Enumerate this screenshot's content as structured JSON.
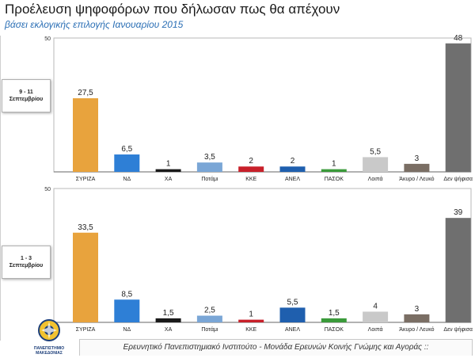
{
  "header": {
    "title": "Προέλευση ψηφοφόρων που δήλωσαν πως θα απέχουν",
    "subtitle": "βάσει εκλογικής επιλογής Ιανουαρίου 2015"
  },
  "footer": {
    "text": "Ερευνητικό Πανεπιστημιακό Ινστιτούτο - Μονάδα Ερευνών Κοινής Γνώμης και Αγοράς ::",
    "logo_line1": "ΠΑΝΕΠΙΣΤΗΜΙΟ",
    "logo_line2": "ΜΑΚΕΔΟΝΙΑΣ"
  },
  "panels": [
    {
      "period_line1": "9 - 11",
      "period_line2": "Σεπτεμβρίου",
      "axis_max_label": "50"
    },
    {
      "period_line1": "1 - 3",
      "period_line2": "Σεπτεμβρίου",
      "axis_max_label": "50"
    }
  ],
  "colors": {
    "ΣΥΡΙΖΑ": "#e8a33d",
    "ΝΔ": "#2e7fd6",
    "ΧΑ": "#1a1a1a",
    "Ποτάμι": "#7aa6d6",
    "ΚΚΕ": "#c8202a",
    "ΑΝΕΛ": "#1f5fae",
    "ΠΑΣΟΚ": "#3a9a3a",
    "Λοιπά": "#c9c9c9",
    "Άκυρο / Λευκό": "#7a6e64",
    "Δεν ψήφισα": "#6f6f6f"
  },
  "chart_data": [
    {
      "type": "bar",
      "categories": [
        "ΣΥΡΙΖΑ",
        "ΝΔ",
        "ΧΑ",
        "Ποτάμι",
        "ΚΚΕ",
        "ΑΝΕΛ",
        "ΠΑΣΟΚ",
        "Λοιπά",
        "Άκυρο / Λευκό",
        "Δεν ψήφισα"
      ],
      "values": [
        27.5,
        6.5,
        1,
        3.5,
        2,
        2,
        1,
        5.5,
        3,
        48
      ],
      "value_labels": [
        "27,5",
        "6,5",
        "1",
        "3,5",
        "2",
        "2",
        "1",
        "5,5",
        "3",
        "48"
      ],
      "ylim": [
        0,
        50
      ]
    },
    {
      "type": "bar",
      "categories": [
        "ΣΥΡΙΖΑ",
        "ΝΔ",
        "ΧΑ",
        "Ποτάμι",
        "ΚΚΕ",
        "ΑΝΕΛ",
        "ΠΑΣΟΚ",
        "Λοιπά",
        "Άκυρο / Λευκό",
        "Δεν ψήφισα"
      ],
      "values": [
        33.5,
        8.5,
        1.5,
        2.5,
        1,
        5.5,
        1.5,
        4,
        3,
        39
      ],
      "value_labels": [
        "33,5",
        "8,5",
        "1,5",
        "2,5",
        "1",
        "5,5",
        "1,5",
        "4",
        "3",
        "39"
      ],
      "ylim": [
        0,
        50
      ]
    }
  ]
}
